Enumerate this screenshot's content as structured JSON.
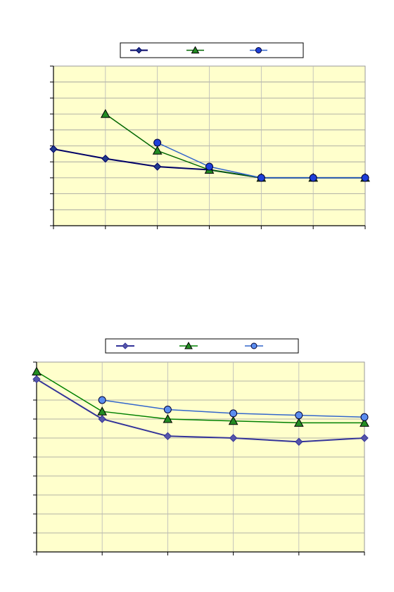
{
  "chart_data": [
    {
      "type": "line",
      "title": "",
      "xlabel": "",
      "ylabel": "",
      "x": [
        0,
        1,
        2,
        3,
        4,
        5,
        6
      ],
      "xlim": [
        0,
        6
      ],
      "ylim": [
        0,
        10
      ],
      "grid": {
        "horizontal": true,
        "vertical": true
      },
      "legend_position": "top-center",
      "background_color": "#FFFFCC",
      "series": [
        {
          "marker": "diamond",
          "color": "#000066",
          "fill": "#1F3A8C",
          "line_width": 2,
          "values": [
            4.8,
            4.2,
            3.7,
            3.5,
            3.0,
            3.0,
            3.0
          ]
        },
        {
          "marker": "triangle",
          "color": "#006600",
          "fill": "#228B22",
          "line_width": 1.5,
          "values": [
            null,
            7.0,
            4.7,
            3.5,
            3.0,
            3.0,
            3.0
          ]
        },
        {
          "marker": "circle",
          "color": "#3366CC",
          "fill": "#1E3FD9",
          "line_width": 1.5,
          "values": [
            null,
            null,
            5.2,
            3.7,
            3.0,
            3.0,
            3.0
          ]
        }
      ]
    },
    {
      "type": "line",
      "title": "",
      "xlabel": "",
      "ylabel": "",
      "x": [
        0,
        1,
        2,
        3,
        4,
        5
      ],
      "xlim": [
        0,
        5
      ],
      "ylim": [
        0,
        10
      ],
      "grid": {
        "horizontal": true,
        "vertical": true
      },
      "legend_position": "top-center",
      "background_color": "#FFFFCC",
      "series": [
        {
          "marker": "diamond",
          "color": "#333399",
          "fill": "#5555AA",
          "line_width": 2,
          "values": [
            9.1,
            7.0,
            6.1,
            6.0,
            5.8,
            6.0
          ]
        },
        {
          "marker": "triangle",
          "color": "#008000",
          "fill": "#228B22",
          "line_width": 1.5,
          "values": [
            9.5,
            7.4,
            7.0,
            6.9,
            6.8,
            6.8
          ]
        },
        {
          "marker": "circle",
          "color": "#3366CC",
          "fill": "#5B8DEF",
          "line_width": 1.5,
          "values": [
            null,
            8.0,
            7.5,
            7.3,
            7.2,
            7.1
          ]
        }
      ]
    }
  ]
}
